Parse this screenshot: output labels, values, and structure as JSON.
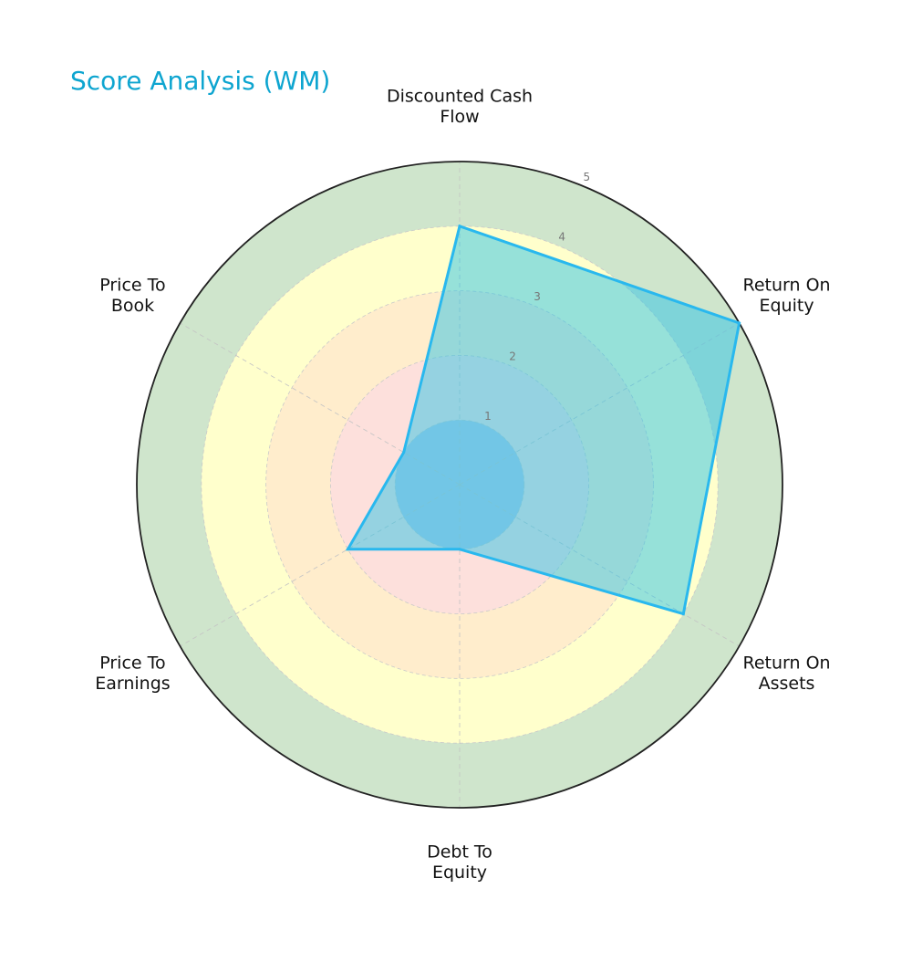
{
  "chart_data": {
    "type": "radar",
    "title": "Score Analysis (WM)",
    "axes": [
      [
        "Discounted Cash",
        "Flow"
      ],
      [
        "Return On",
        "Equity"
      ],
      [
        "Return On",
        "Assets"
      ],
      [
        "Debt To",
        "Equity"
      ],
      [
        "Price To",
        "Earnings"
      ],
      [
        "Price To",
        "Book"
      ]
    ],
    "values": [
      4,
      5,
      4,
      1,
      2,
      1
    ],
    "rlim": [
      0,
      5
    ],
    "ticks": [
      1,
      2,
      3,
      4,
      5
    ],
    "tick_labels": [
      "1",
      "2",
      "3",
      "4",
      "5"
    ],
    "grid": true,
    "colors": {
      "band_1": "#b6c9e6",
      "band_2": "#fde0dc",
      "band_3": "#ffedcc",
      "band_4": "#ffffcc",
      "band_5": "#cfe5cc",
      "series_fill": "#2ec4e6",
      "series_line": "#29b8ee",
      "outline": "#222222",
      "title": "#0ea5d0"
    }
  }
}
